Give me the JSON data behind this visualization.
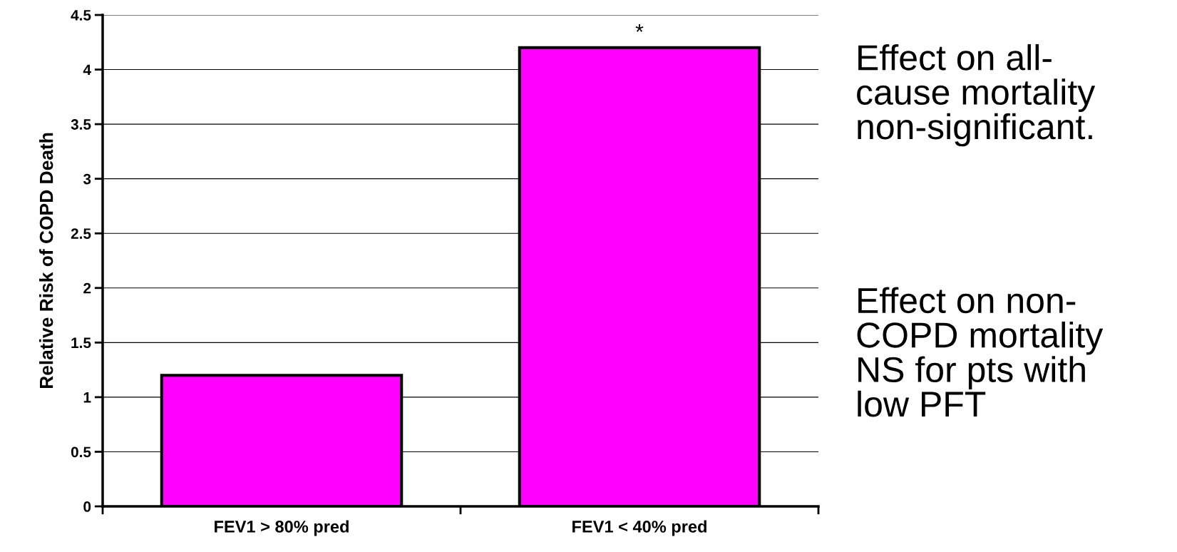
{
  "chart_data": {
    "type": "bar",
    "ylabel": "Relative Risk of COPD Death",
    "categories": [
      "FEV1 > 80% pred",
      "FEV1 < 40% pred"
    ],
    "values": [
      1.2,
      4.2
    ],
    "color": "#ff00ff",
    "ylim": [
      0,
      4.5
    ],
    "yticks": [
      0,
      0.5,
      1,
      1.5,
      2,
      2.5,
      3,
      3.5,
      4,
      4.5
    ],
    "grid": "y",
    "annotations": [
      {
        "text": "*",
        "x": "FEV1 < 40% pred",
        "y": 4.2
      },
      "Effect on all-\ncause mortality\nnon-significant.",
      "Effect on non-\nCOPD mortality\nNS for pts with\nlow PFT"
    ]
  }
}
